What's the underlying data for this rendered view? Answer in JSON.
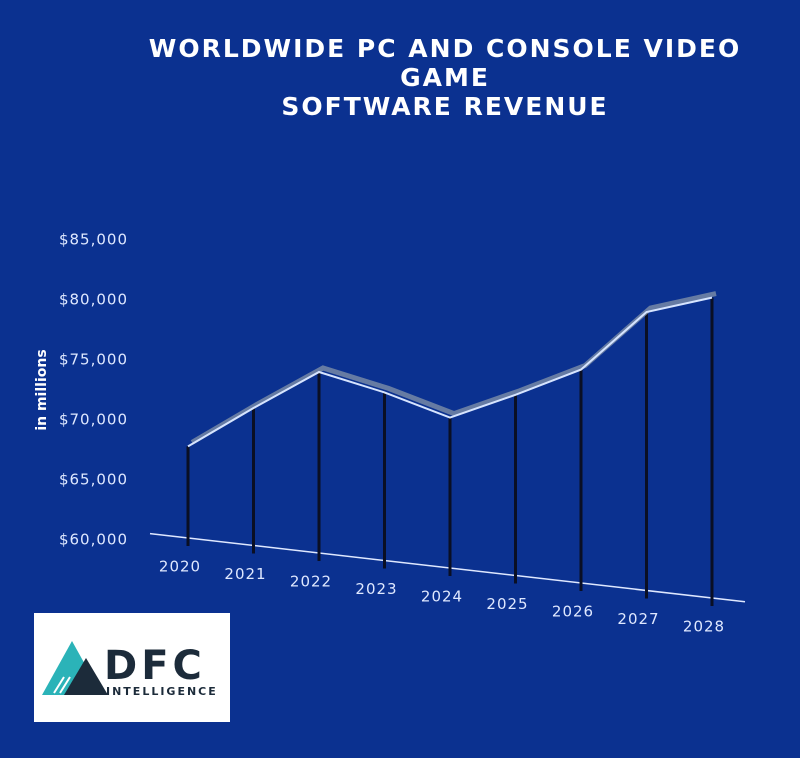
{
  "chart_data": {
    "type": "line",
    "title": "WORLDWIDE PC AND CONSOLE VIDEO\nGAME\nSOFTWARE REVENUE",
    "y_label": "in millions",
    "categories": [
      "2020",
      "2021",
      "2022",
      "2023",
      "2024",
      "2025",
      "2026",
      "2027",
      "2028"
    ],
    "series": [
      {
        "name": "Software revenue",
        "color": "#d6e4ff",
        "values": [
          67800,
          71000,
          74000,
          72300,
          70200,
          72100,
          74200,
          79000,
          80200
        ]
      }
    ],
    "ylim": [
      60000,
      85000
    ],
    "yticks": [
      {
        "value": 60000,
        "label": "$60,000"
      },
      {
        "value": 65000,
        "label": "$65,000"
      },
      {
        "value": 70000,
        "label": "$70,000"
      },
      {
        "value": 75000,
        "label": "$75,000"
      },
      {
        "value": 80000,
        "label": "$80,000"
      },
      {
        "value": 85000,
        "label": "$85,000"
      }
    ],
    "drop_line_color": "#0a0f24"
  },
  "logo": {
    "name": "DFC",
    "tagline": "INTELLIGENCE"
  }
}
